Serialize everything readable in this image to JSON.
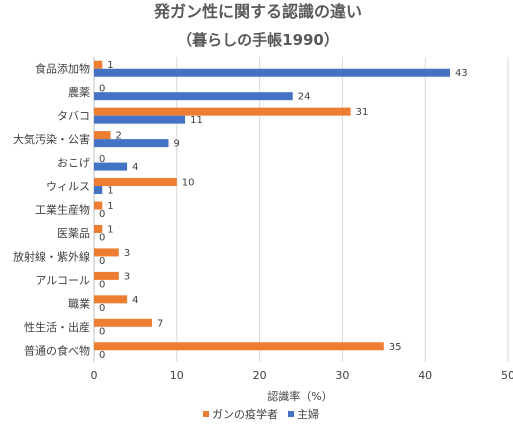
{
  "chart_data": {
    "type": "bar",
    "orientation": "horizontal",
    "title": "発ガン性に関する認識の違い",
    "subtitle": "（暮らしの手帳1990）",
    "xlabel": "認識率（%）",
    "ylabel": "",
    "xlim": [
      0,
      50
    ],
    "xticks": [
      0,
      10,
      20,
      30,
      40,
      50
    ],
    "grid": "vertical",
    "legend_position": "bottom",
    "categories": [
      "食品添加物",
      "農薬",
      "タバコ",
      "大気汚染・公害",
      "おこげ",
      "ウィルス",
      "工業生産物",
      "医薬品",
      "放射線・紫外線",
      "アルコール",
      "職業",
      "性生活・出産",
      "普通の食べ物"
    ],
    "series": [
      {
        "name": "ガンの疫学者",
        "color": "#ED7D31",
        "values": [
          1,
          0,
          31,
          2,
          0,
          10,
          1,
          1,
          3,
          3,
          4,
          7,
          35
        ]
      },
      {
        "name": "主婦",
        "color": "#4472C4",
        "values": [
          43,
          24,
          11,
          9,
          4,
          1,
          0,
          0,
          0,
          0,
          0,
          0,
          0
        ]
      }
    ]
  }
}
